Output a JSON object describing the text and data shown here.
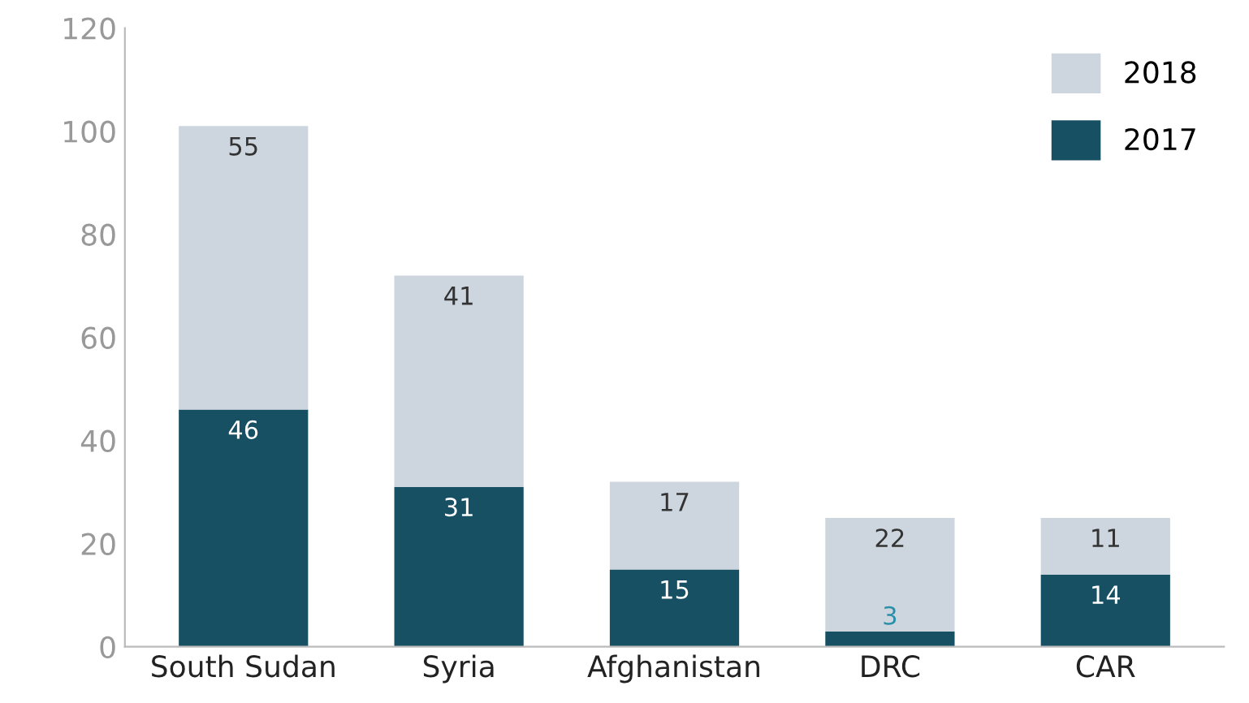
{
  "chart_data": {
    "type": "bar",
    "stacked": true,
    "categories": [
      "South Sudan",
      "Syria",
      "Afghanistan",
      "DRC",
      "CAR"
    ],
    "series": [
      {
        "name": "2017",
        "color": "#174f63",
        "values": [
          46,
          31,
          15,
          3,
          14
        ]
      },
      {
        "name": "2018",
        "color": "#cdd6de",
        "values": [
          55,
          41,
          17,
          22,
          11
        ]
      }
    ],
    "ylim": [
      0,
      120
    ],
    "yticks": [
      0,
      20,
      40,
      60,
      80,
      100,
      120
    ],
    "grid": false,
    "legend": "top right",
    "data_labels": true
  }
}
